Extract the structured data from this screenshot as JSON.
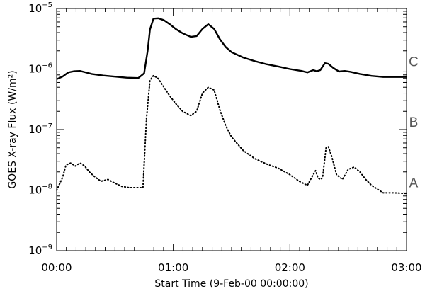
{
  "chart_data": {
    "type": "line",
    "title": "",
    "xlabel": "Start Time (9-Feb-00 00:00:00)",
    "ylabel": "GOES X-ray Flux (W/m²)",
    "x_unit": "hours after start (00:00)",
    "xlim": [
      0,
      3
    ],
    "ylim": [
      1e-09,
      1e-05
    ],
    "yscale": "log",
    "grid": false,
    "x_ticks": [
      {
        "value": 0,
        "label": "00:00"
      },
      {
        "value": 1,
        "label": "01:00"
      },
      {
        "value": 2,
        "label": "02:00"
      },
      {
        "value": 3,
        "label": "03:00"
      }
    ],
    "y_ticks": [
      {
        "value": 1e-09,
        "base": "10",
        "exp": "−9"
      },
      {
        "value": 1e-08,
        "base": "10",
        "exp": "−8"
      },
      {
        "value": 1e-07,
        "base": "10",
        "exp": "−7"
      },
      {
        "value": 1e-06,
        "base": "10",
        "exp": "−6"
      },
      {
        "value": 1e-05,
        "base": "10",
        "exp": "−5"
      }
    ],
    "class_labels": [
      {
        "label": "A",
        "value": 1e-08
      },
      {
        "label": "B",
        "value": 1e-07
      },
      {
        "label": "C",
        "value": 1e-06
      }
    ],
    "series": [
      {
        "style": "solid",
        "x": [
          0,
          0.05,
          0.1,
          0.15,
          0.2,
          0.25,
          0.3,
          0.4,
          0.5,
          0.6,
          0.7,
          0.75,
          0.78,
          0.8,
          0.83,
          0.87,
          0.92,
          0.97,
          1.02,
          1.08,
          1.15,
          1.2,
          1.25,
          1.3,
          1.35,
          1.4,
          1.45,
          1.5,
          1.6,
          1.7,
          1.8,
          1.9,
          2.0,
          2.1,
          2.15,
          2.2,
          2.23,
          2.26,
          2.3,
          2.33,
          2.37,
          2.42,
          2.47,
          2.52,
          2.6,
          2.7,
          2.8,
          2.9,
          3.0
        ],
        "y": [
          6.8e-07,
          7.5e-07,
          8.8e-07,
          9.2e-07,
          9.3e-07,
          8.8e-07,
          8.3e-07,
          7.8e-07,
          7.5e-07,
          7.2e-07,
          7.1e-07,
          8.5e-07,
          2e-06,
          4.5e-06,
          6.8e-06,
          6.9e-06,
          6.4e-06,
          5.5e-06,
          4.6e-06,
          3.9e-06,
          3.4e-06,
          3.5e-06,
          4.6e-06,
          5.5e-06,
          4.6e-06,
          3.1e-06,
          2.3e-06,
          1.9e-06,
          1.55e-06,
          1.35e-06,
          1.2e-06,
          1.1e-06,
          1e-06,
          9.3e-07,
          8.8e-07,
          9.6e-07,
          9.2e-07,
          9.6e-07,
          1.25e-06,
          1.22e-06,
          1.05e-06,
          9.1e-07,
          9.3e-07,
          9e-07,
          8.3e-07,
          7.7e-07,
          7.4e-07,
          7.4e-07,
          7.4e-07
        ]
      },
      {
        "style": "dotted",
        "x": [
          0,
          0.05,
          0.08,
          0.12,
          0.16,
          0.2,
          0.24,
          0.28,
          0.32,
          0.38,
          0.44,
          0.5,
          0.56,
          0.62,
          0.7,
          0.74,
          0.77,
          0.8,
          0.83,
          0.87,
          0.92,
          0.97,
          1.02,
          1.08,
          1.15,
          1.2,
          1.25,
          1.3,
          1.35,
          1.4,
          1.45,
          1.5,
          1.6,
          1.7,
          1.8,
          1.9,
          2.0,
          2.08,
          2.15,
          2.2,
          2.22,
          2.24,
          2.26,
          2.28,
          2.31,
          2.33,
          2.36,
          2.4,
          2.45,
          2.5,
          2.55,
          2.6,
          2.65,
          2.7,
          2.8,
          2.9,
          3.0
        ],
        "y": [
          1e-08,
          1.6e-08,
          2.6e-08,
          2.8e-08,
          2.5e-08,
          2.8e-08,
          2.5e-08,
          2e-08,
          1.7e-08,
          1.4e-08,
          1.5e-08,
          1.3e-08,
          1.15e-08,
          1.1e-08,
          1.1e-08,
          1.1e-08,
          1.5e-07,
          6.5e-07,
          7.8e-07,
          7e-07,
          5e-07,
          3.6e-07,
          2.7e-07,
          2e-07,
          1.7e-07,
          2e-07,
          4e-07,
          5e-07,
          4.5e-07,
          2.1e-07,
          1.15e-07,
          7.5e-08,
          4.5e-08,
          3.3e-08,
          2.7e-08,
          2.3e-08,
          1.8e-08,
          1.4e-08,
          1.2e-08,
          1.8e-08,
          2.1e-08,
          1.6e-08,
          1.5e-08,
          1.6e-08,
          5e-08,
          5.2e-08,
          3.5e-08,
          1.8e-08,
          1.5e-08,
          2.2e-08,
          2.4e-08,
          2e-08,
          1.5e-08,
          1.2e-08,
          9e-09,
          9e-09,
          8.8e-09
        ]
      }
    ]
  }
}
